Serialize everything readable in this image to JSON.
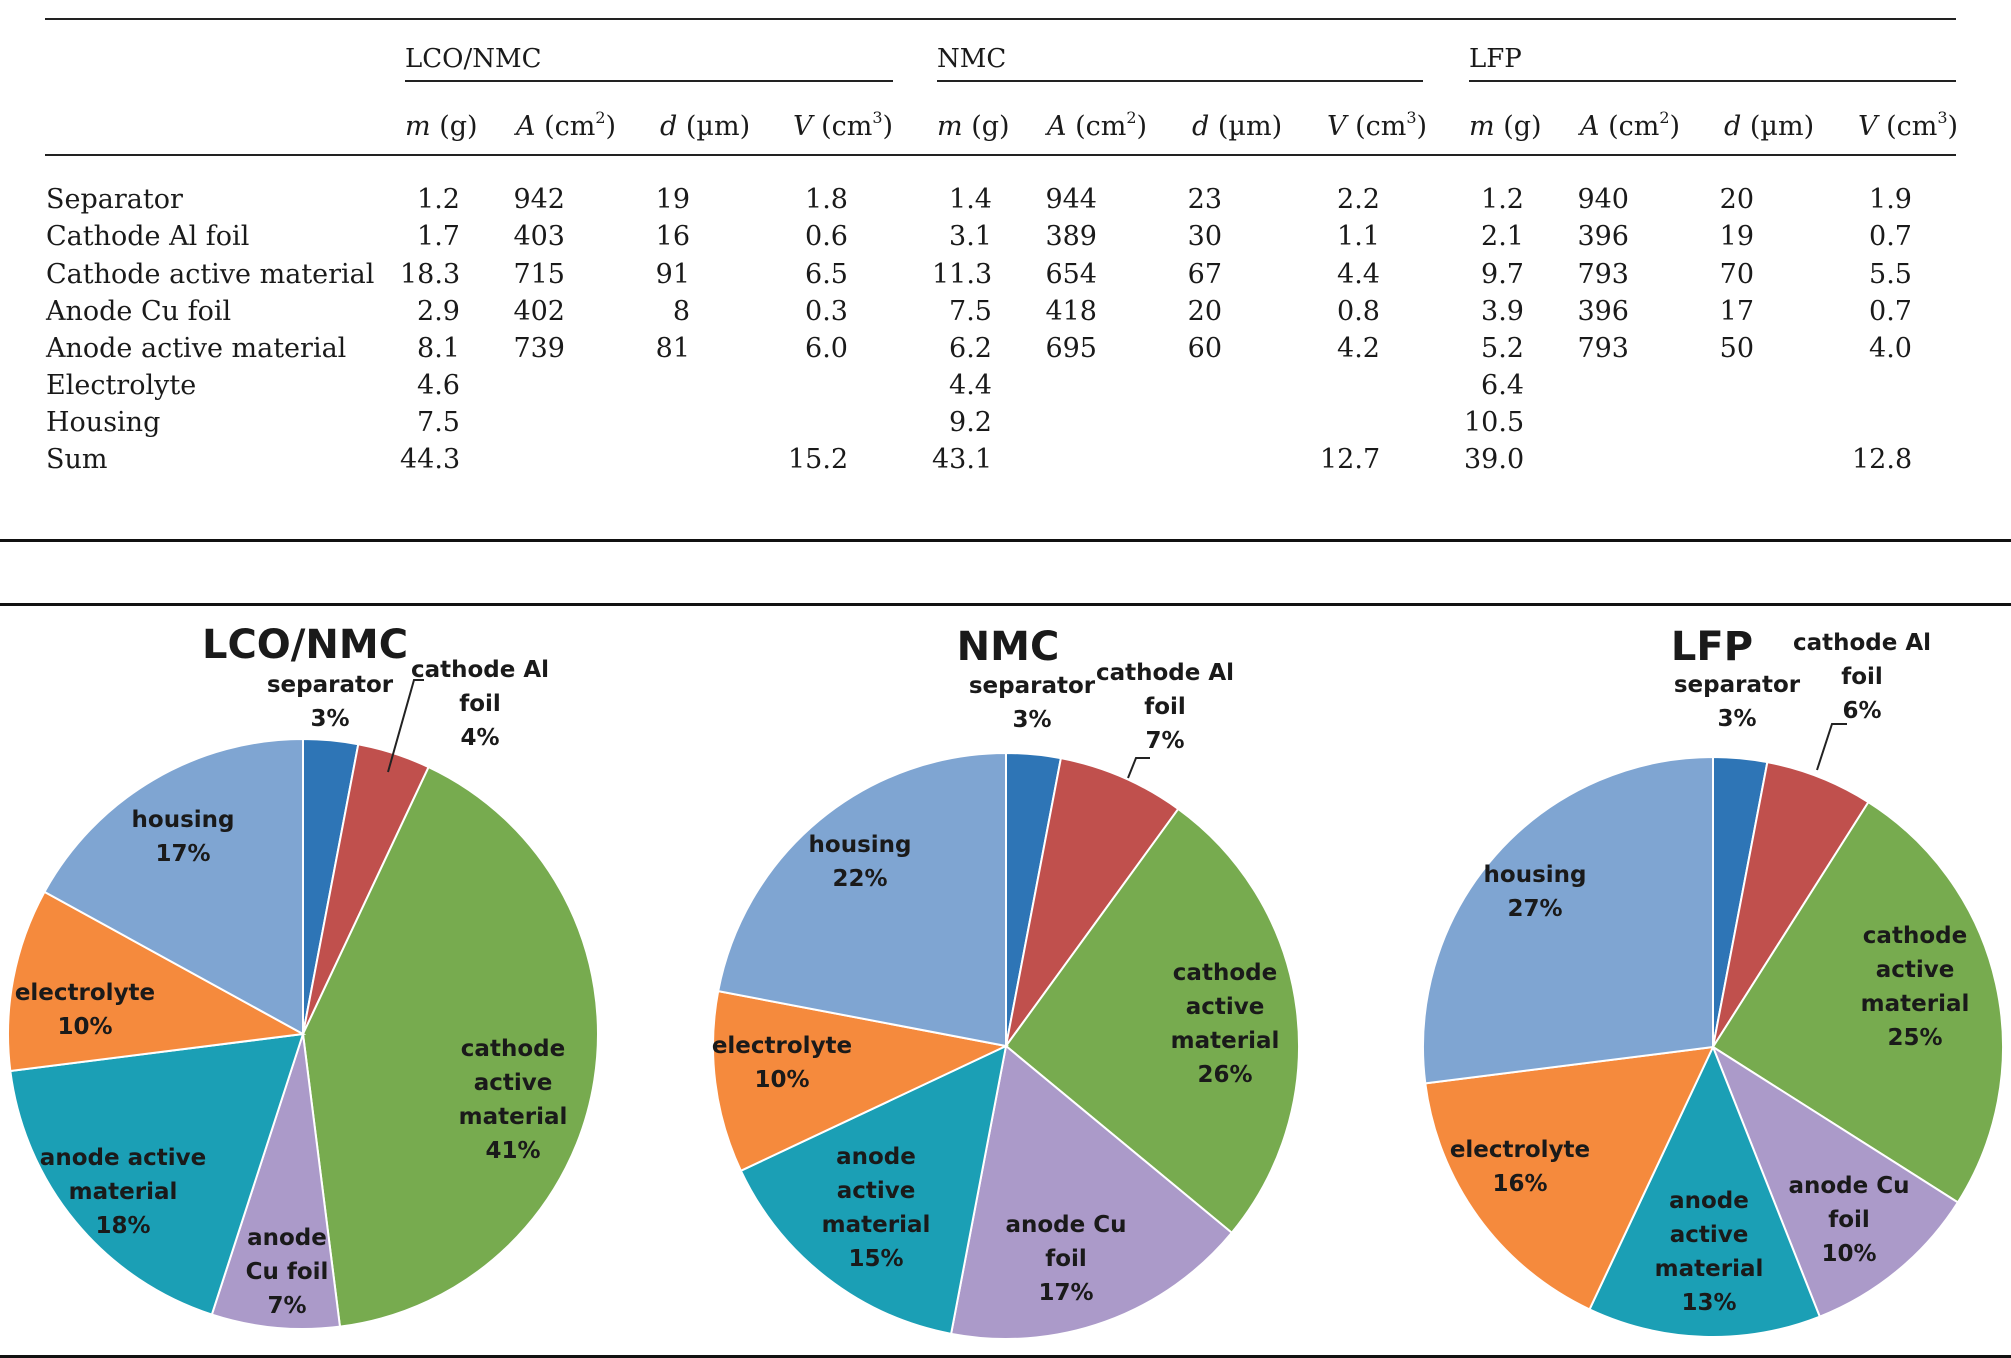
{
  "table": {
    "groups": [
      "LCO/NMC",
      "NMC",
      "LFP"
    ],
    "columns": [
      {
        "sym": "m",
        "unit": "(g)",
        "sup": ""
      },
      {
        "sym": "A",
        "unit": "(cm",
        "sup": "2",
        "close": ")"
      },
      {
        "sym": "d",
        "unit": "(µm)",
        "sup": ""
      },
      {
        "sym": "V",
        "unit": "(cm",
        "sup": "3",
        "close": ")"
      }
    ],
    "rows": [
      {
        "label": "Separator",
        "values": [
          "1.2",
          "942",
          "19",
          "1.8",
          "1.4",
          "944",
          "23",
          "2.2",
          "1.2",
          "940",
          "20",
          "1.9"
        ]
      },
      {
        "label": "Cathode Al foil",
        "values": [
          "1.7",
          "403",
          "16",
          "0.6",
          "3.1",
          "389",
          "30",
          "1.1",
          "2.1",
          "396",
          "19",
          "0.7"
        ]
      },
      {
        "label": "Cathode active material",
        "values": [
          "18.3",
          "715",
          "91",
          "6.5",
          "11.3",
          "654",
          "67",
          "4.4",
          "9.7",
          "793",
          "70",
          "5.5"
        ]
      },
      {
        "label": "Anode Cu foil",
        "values": [
          "2.9",
          "402",
          "8",
          "0.3",
          "7.5",
          "418",
          "20",
          "0.8",
          "3.9",
          "396",
          "17",
          "0.7"
        ]
      },
      {
        "label": "Anode active material",
        "values": [
          "8.1",
          "739",
          "81",
          "6.0",
          "6.2",
          "695",
          "60",
          "4.2",
          "5.2",
          "793",
          "50",
          "4.0"
        ]
      },
      {
        "label": "Electrolyte",
        "values": [
          "4.6",
          "",
          "",
          "",
          "4.4",
          "",
          "",
          "",
          "6.4",
          "",
          "",
          ""
        ]
      },
      {
        "label": "Housing",
        "values": [
          "7.5",
          "",
          "",
          "",
          "9.2",
          "",
          "",
          "",
          "10.5",
          "",
          "",
          ""
        ]
      },
      {
        "label": "Sum",
        "values": [
          "44.3",
          "",
          "",
          "15.2",
          "43.1",
          "",
          "",
          "12.7",
          "39.0",
          "",
          "",
          "12.8"
        ]
      }
    ]
  },
  "chart_data": [
    {
      "type": "pie",
      "title": "LCO/NMC",
      "slices": [
        {
          "label": "separator",
          "value": 3,
          "display": "3%",
          "color": "#2e75b6"
        },
        {
          "label": "cathode Al foil",
          "value": 4,
          "display": "4%",
          "color": "#c0504d"
        },
        {
          "label": "cathode active material",
          "value": 41,
          "display": "41%",
          "color": "#77ab4f"
        },
        {
          "label": "anode Cu foil",
          "value": 7,
          "display": "7%",
          "color": "#ab9ac9"
        },
        {
          "label": "anode active material",
          "value": 18,
          "display": "18%",
          "color": "#1b9fb5"
        },
        {
          "label": "electrolyte",
          "value": 10,
          "display": "10%",
          "color": "#f58a3d"
        },
        {
          "label": "housing",
          "value": 17,
          "display": "17%",
          "color": "#7fa5d2"
        }
      ]
    },
    {
      "type": "pie",
      "title": "NMC",
      "slices": [
        {
          "label": "separator",
          "value": 3,
          "display": "3%",
          "color": "#2e75b6"
        },
        {
          "label": "cathode Al foil",
          "value": 7,
          "display": "7%",
          "color": "#c0504d"
        },
        {
          "label": "cathode active material",
          "value": 26,
          "display": "26%",
          "color": "#77ab4f"
        },
        {
          "label": "anode Cu foil",
          "value": 17,
          "display": "17%",
          "color": "#ab9ac9"
        },
        {
          "label": "anode active material",
          "value": 15,
          "display": "15%",
          "color": "#1b9fb5"
        },
        {
          "label": "electrolyte",
          "value": 10,
          "display": "10%",
          "color": "#f58a3d"
        },
        {
          "label": "housing",
          "value": 22,
          "display": "22%",
          "color": "#7fa5d2"
        }
      ]
    },
    {
      "type": "pie",
      "title": "LFP",
      "slices": [
        {
          "label": "separator",
          "value": 3,
          "display": "3%",
          "color": "#2e75b6"
        },
        {
          "label": "cathode Al foil",
          "value": 6,
          "display": "6%",
          "color": "#c0504d"
        },
        {
          "label": "cathode active material",
          "value": 25,
          "display": "25%",
          "color": "#77ab4f"
        },
        {
          "label": "anode Cu foil",
          "value": 10,
          "display": "10%",
          "color": "#ab9ac9"
        },
        {
          "label": "anode active material",
          "value": 13,
          "display": "13%",
          "color": "#1b9fb5"
        },
        {
          "label": "electrolyte",
          "value": 16,
          "display": "16%",
          "color": "#f58a3d"
        },
        {
          "label": "housing",
          "value": 27,
          "display": "27%",
          "color": "#7fa5d2"
        }
      ]
    }
  ]
}
